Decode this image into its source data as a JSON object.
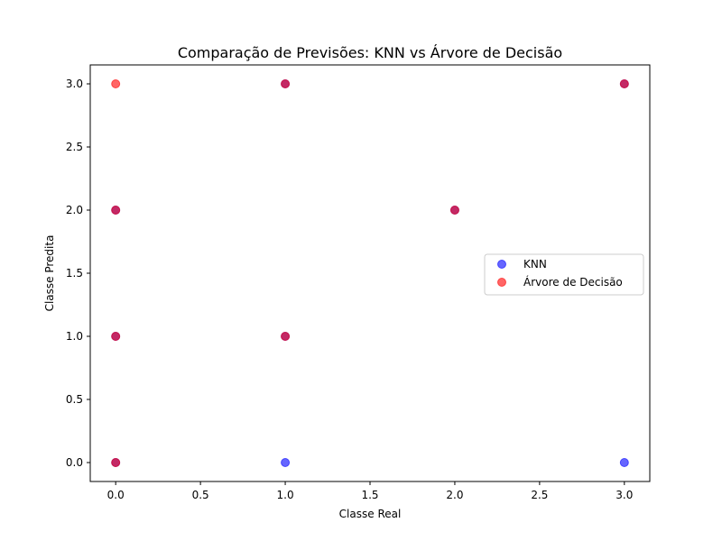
{
  "chart_data": {
    "type": "scatter",
    "title": "Comparação de Previsões: KNN vs Árvore de Decisão",
    "xlabel": "Classe Real",
    "ylabel": "Classe Predita",
    "xlim": [
      -0.15,
      3.15
    ],
    "ylim": [
      -0.15,
      3.15
    ],
    "xticks": [
      "0.0",
      "0.5",
      "1.0",
      "1.5",
      "2.0",
      "2.5",
      "3.0"
    ],
    "yticks": [
      "0.0",
      "0.5",
      "1.0",
      "1.5",
      "2.0",
      "2.5",
      "3.0"
    ],
    "grid": false,
    "legend_position": "center-right",
    "series": [
      {
        "name": "KNN",
        "color": "#0000ff",
        "points": [
          [
            0,
            0
          ],
          [
            0,
            1
          ],
          [
            0,
            2
          ],
          [
            1,
            0
          ],
          [
            1,
            1
          ],
          [
            1,
            3
          ],
          [
            2,
            2
          ],
          [
            3,
            0
          ],
          [
            3,
            3
          ]
        ]
      },
      {
        "name": "Árvore de Decisão",
        "color": "#ff0000",
        "points": [
          [
            0,
            0
          ],
          [
            0,
            1
          ],
          [
            0,
            2
          ],
          [
            0,
            3
          ],
          [
            1,
            1
          ],
          [
            1,
            3
          ],
          [
            2,
            2
          ],
          [
            3,
            3
          ]
        ]
      }
    ]
  }
}
